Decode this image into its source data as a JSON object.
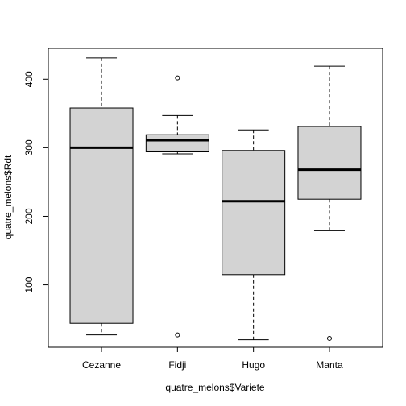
{
  "chart_data": {
    "type": "boxplot",
    "title": "",
    "xlabel": "quatre_melons$Variete",
    "ylabel": "quatre_melons$Rdt",
    "categories": [
      "Cezanne",
      "Fidji",
      "Hugo",
      "Manta"
    ],
    "y_ticks": [
      100,
      200,
      300,
      400
    ],
    "ylim": [
      9,
      445
    ],
    "grid": false,
    "legend": "none",
    "box_fill": "#d3d3d3",
    "boxes": [
      {
        "name": "Cezanne",
        "whisker_low": 27,
        "q1": 44,
        "median": 300,
        "q3": 358,
        "whisker_high": 431,
        "outliers": []
      },
      {
        "name": "Fidji",
        "whisker_low": 291,
        "q1": 294,
        "median": 311,
        "q3": 319,
        "whisker_high": 347,
        "outliers": [
          402,
          27
        ]
      },
      {
        "name": "Hugo",
        "whisker_low": 20,
        "q1": 115,
        "median": 222,
        "q3": 296,
        "whisker_high": 326,
        "outliers": []
      },
      {
        "name": "Manta",
        "whisker_low": 179,
        "q1": 225,
        "median": 268,
        "q3": 331,
        "whisker_high": 419,
        "outliers": [
          22
        ]
      }
    ]
  }
}
